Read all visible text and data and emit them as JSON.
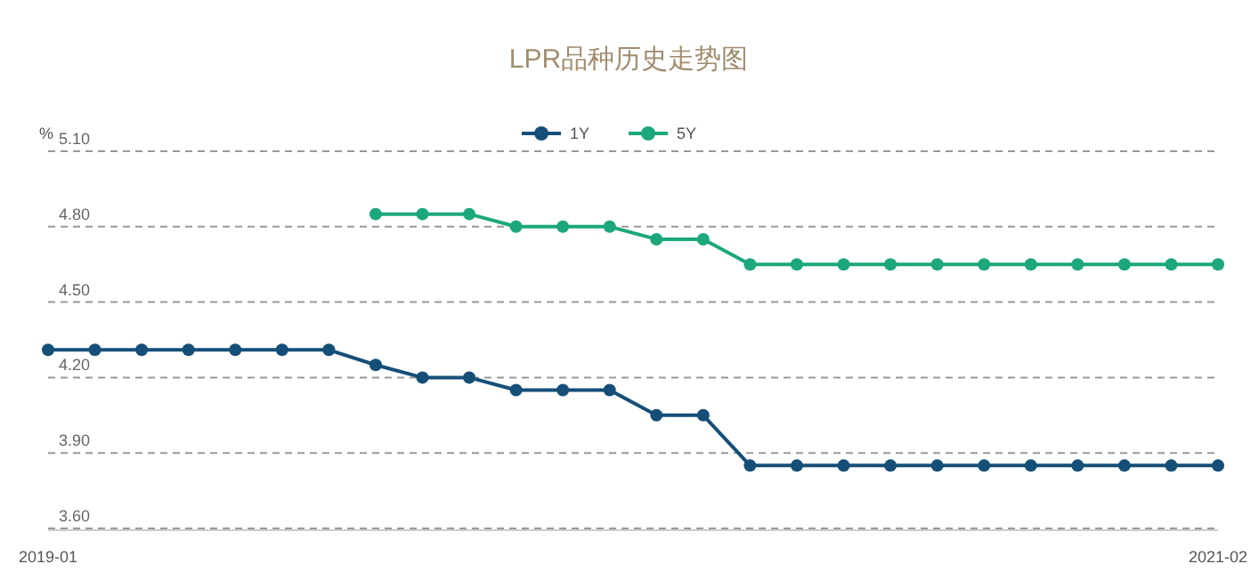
{
  "chart_data": {
    "type": "line",
    "title": "LPR品种历史走势图",
    "ylabel": "%",
    "x": [
      "2019-01",
      "2019-02",
      "2019-03",
      "2019-04",
      "2019-05",
      "2019-06",
      "2019-07",
      "2019-08",
      "2019-09",
      "2019-10",
      "2019-11",
      "2019-12",
      "2020-01",
      "2020-02",
      "2020-03",
      "2020-04",
      "2020-05",
      "2020-06",
      "2020-07",
      "2020-08",
      "2020-09",
      "2020-10",
      "2020-11",
      "2020-12",
      "2021-01",
      "2021-02"
    ],
    "series": [
      {
        "name": "1Y",
        "color": "#154f78",
        "values": [
          4.31,
          4.31,
          4.31,
          4.31,
          4.31,
          4.31,
          4.31,
          4.25,
          4.2,
          4.2,
          4.15,
          4.15,
          4.15,
          4.05,
          4.05,
          3.85,
          3.85,
          3.85,
          3.85,
          3.85,
          3.85,
          3.85,
          3.85,
          3.85,
          3.85,
          3.85
        ]
      },
      {
        "name": "5Y",
        "color": "#1ca77c",
        "values": [
          null,
          null,
          null,
          null,
          null,
          null,
          null,
          4.85,
          4.85,
          4.85,
          4.8,
          4.8,
          4.8,
          4.75,
          4.75,
          4.65,
          4.65,
          4.65,
          4.65,
          4.65,
          4.65,
          4.65,
          4.65,
          4.65,
          4.65,
          4.65
        ]
      }
    ],
    "xlim": [
      "2019-01",
      "2021-02"
    ],
    "xticks": [
      "2019-01",
      "2021-02"
    ],
    "ylim": [
      3.6,
      5.1
    ],
    "yticks": [
      {
        "value": 3.6,
        "label": "3.60"
      },
      {
        "value": 3.9,
        "label": "3.90"
      },
      {
        "value": 4.2,
        "label": "4.20"
      },
      {
        "value": 4.5,
        "label": "4.50"
      },
      {
        "value": 4.8,
        "label": "4.80"
      },
      {
        "value": 5.1,
        "label": "5.10"
      }
    ],
    "grid": "y",
    "legend": "top",
    "marker": "circle",
    "line_style": "solid"
  }
}
